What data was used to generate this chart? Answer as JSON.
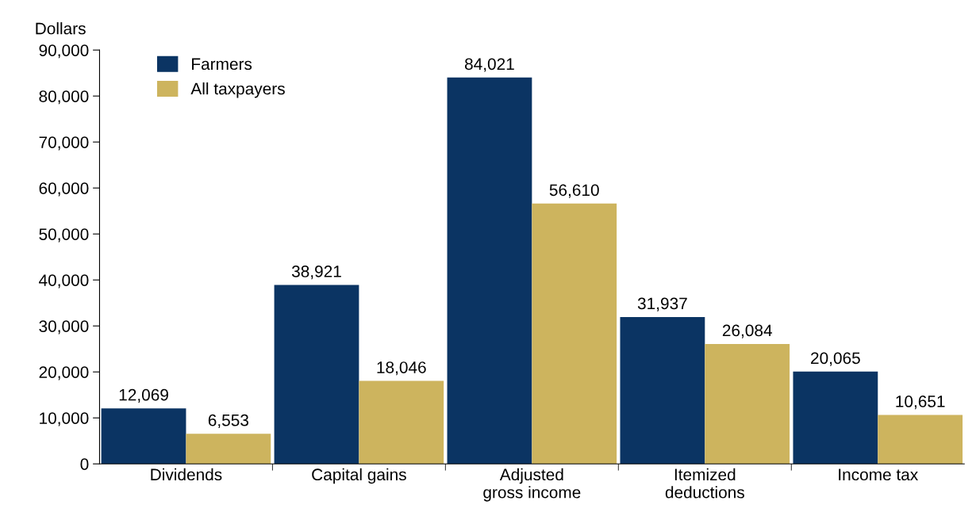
{
  "chart_data": {
    "type": "bar",
    "ylabel": "Dollars",
    "categories": [
      "Dividends",
      "Capital gains",
      "Adjusted\ngross income",
      "Itemized\ndeductions",
      "Income tax"
    ],
    "series": [
      {
        "name": "Farmers",
        "color": "#0b3463",
        "values": [
          12069,
          38921,
          84021,
          31937,
          20065
        ],
        "value_labels": [
          "12,069",
          "38,921",
          "84,021",
          "31,937",
          "20,065"
        ]
      },
      {
        "name": "All taxpayers",
        "color": "#cdb45e",
        "values": [
          6553,
          18046,
          56610,
          26084,
          10651
        ],
        "value_labels": [
          "6,553",
          "18,046",
          "56,610",
          "26,084",
          "10,651"
        ]
      }
    ],
    "ylim": [
      0,
      90000
    ],
    "yticks": [
      0,
      {
        "value": 10000,
        "label": "10,000"
      },
      {
        "value": 20000,
        "label": "20,000"
      },
      {
        "value": 30000,
        "label": "30,000"
      },
      {
        "value": 40000,
        "label": "40,000"
      },
      {
        "value": 50000,
        "label": "50,000"
      },
      {
        "value": 60000,
        "label": "60,000"
      },
      {
        "value": 70000,
        "label": "70,000"
      },
      {
        "value": 80000,
        "label": "80,000"
      },
      {
        "value": 90000,
        "label": "90,000"
      }
    ],
    "grid": false,
    "legend": "top left"
  }
}
